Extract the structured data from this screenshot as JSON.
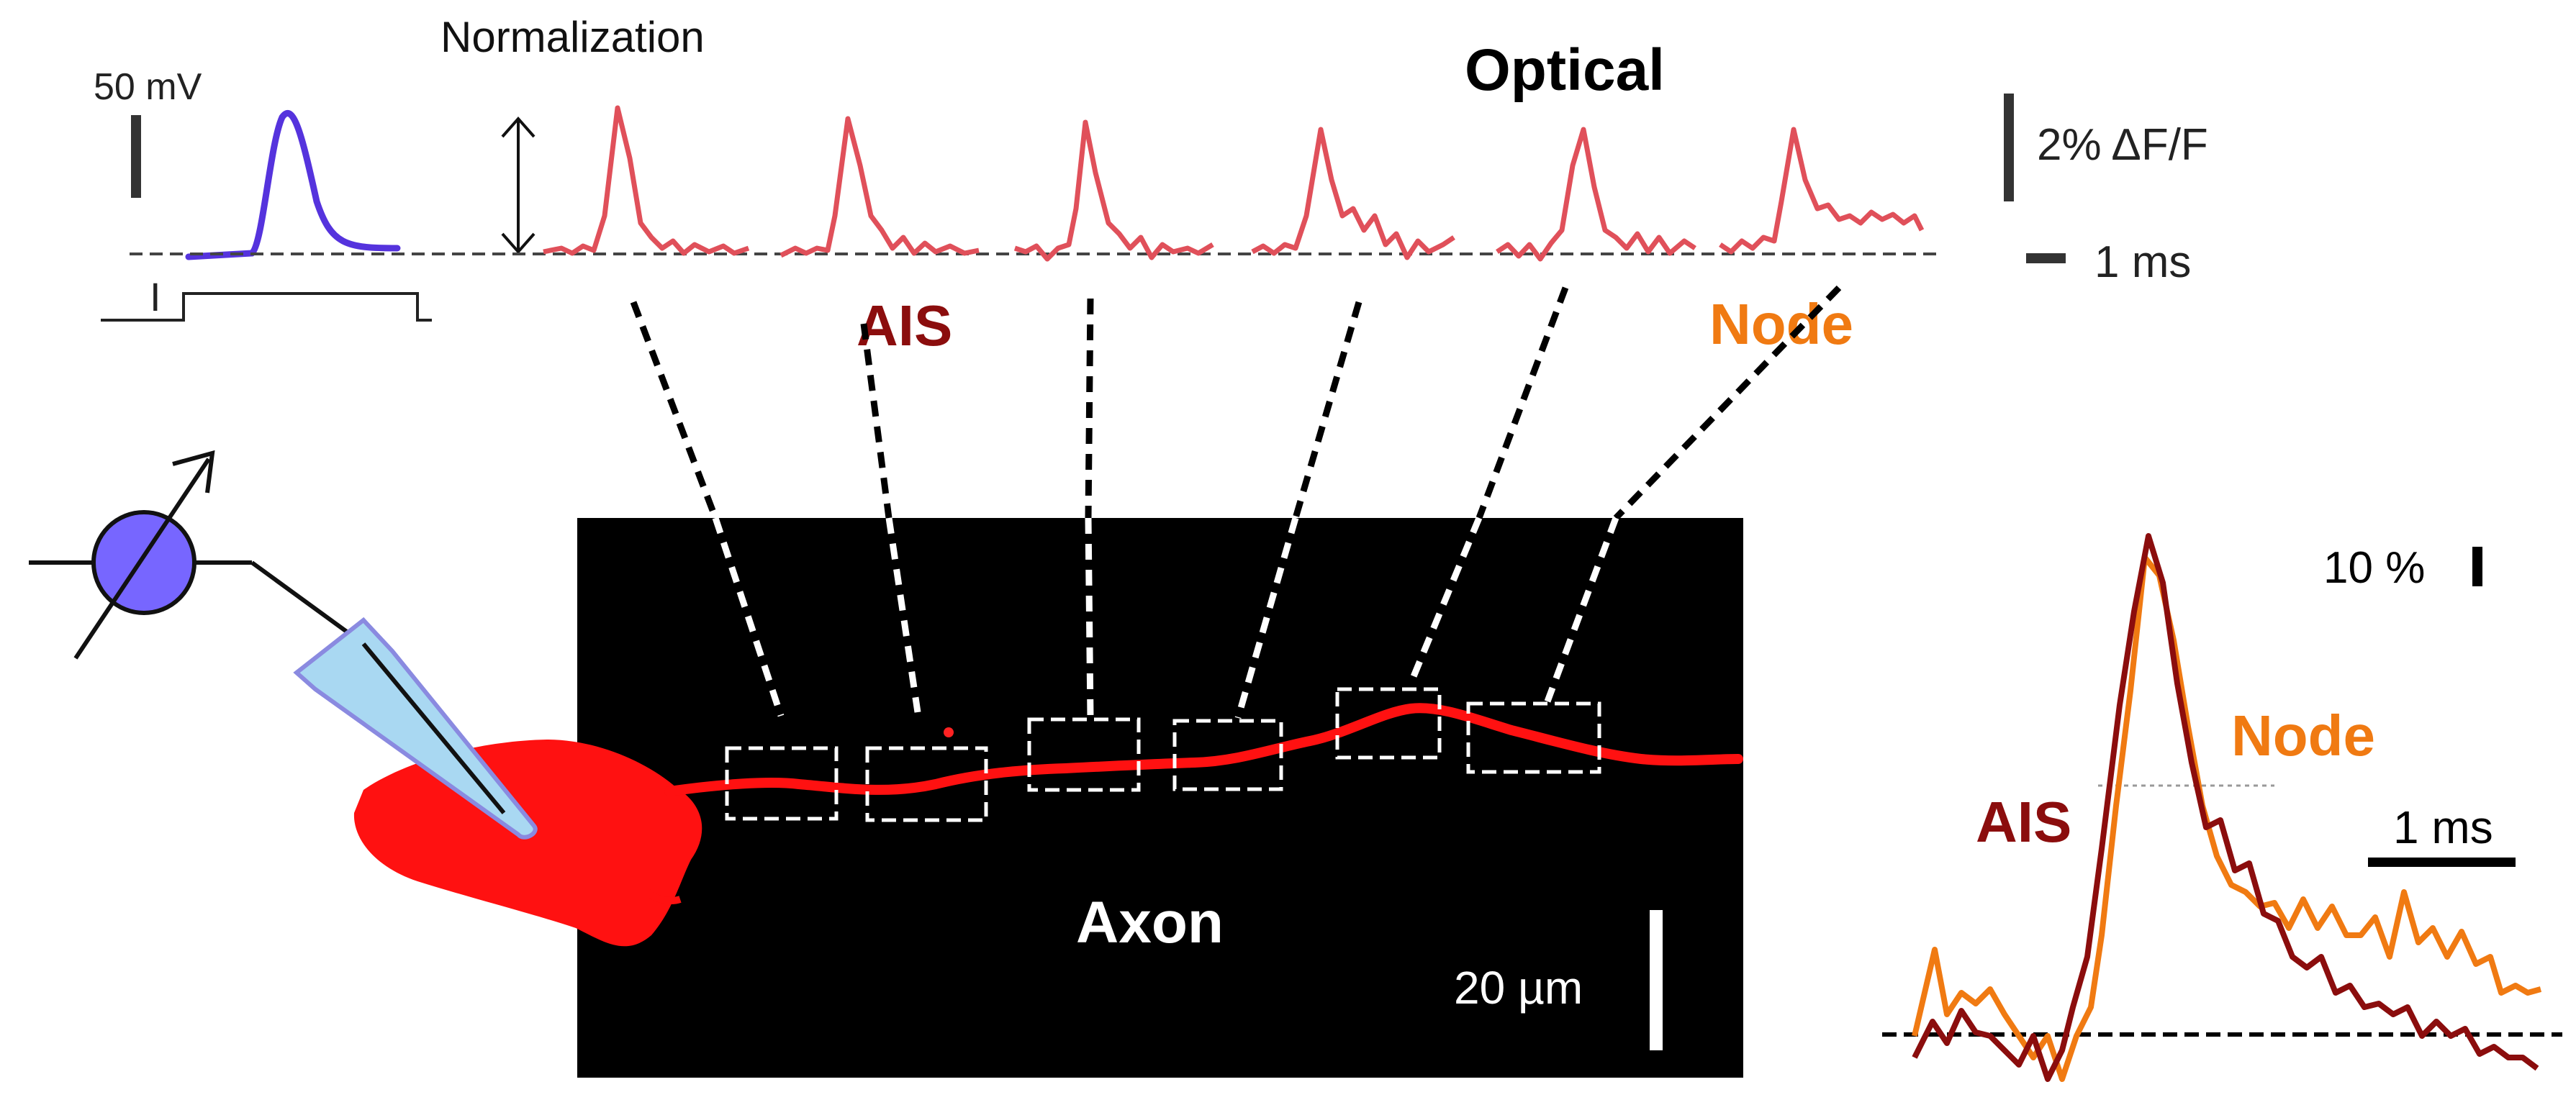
{
  "labels": {
    "normalization": "Normalization",
    "optical": "Optical",
    "voltage_scale": "50 mV",
    "df_scale": "2% ΔF/F",
    "time_scale_top": "1 ms",
    "ais_top": "AIS",
    "node_top": "Node",
    "current_symbol": "I",
    "axon": "Axon",
    "length_scale": "20 µm",
    "overlay_scale": "10 %",
    "overlay_ais": "AIS",
    "overlay_node": "Node",
    "overlay_time": "1 ms"
  },
  "colors": {
    "voltage_trace": "#5533dd",
    "optical_traces": "#e0505a",
    "ais": "#8b0d0d",
    "node": "#f07a12",
    "amplifier": "#7766ff",
    "pipette": "#a9d8f2",
    "neuron": "#ff1111",
    "image_background": "#000000"
  },
  "icons": {
    "amplifier": "amplifier-symbol-icon",
    "pipette": "patch-pipette-icon",
    "double_arrow": "double-arrow-icon"
  },
  "roi_count": 6
}
